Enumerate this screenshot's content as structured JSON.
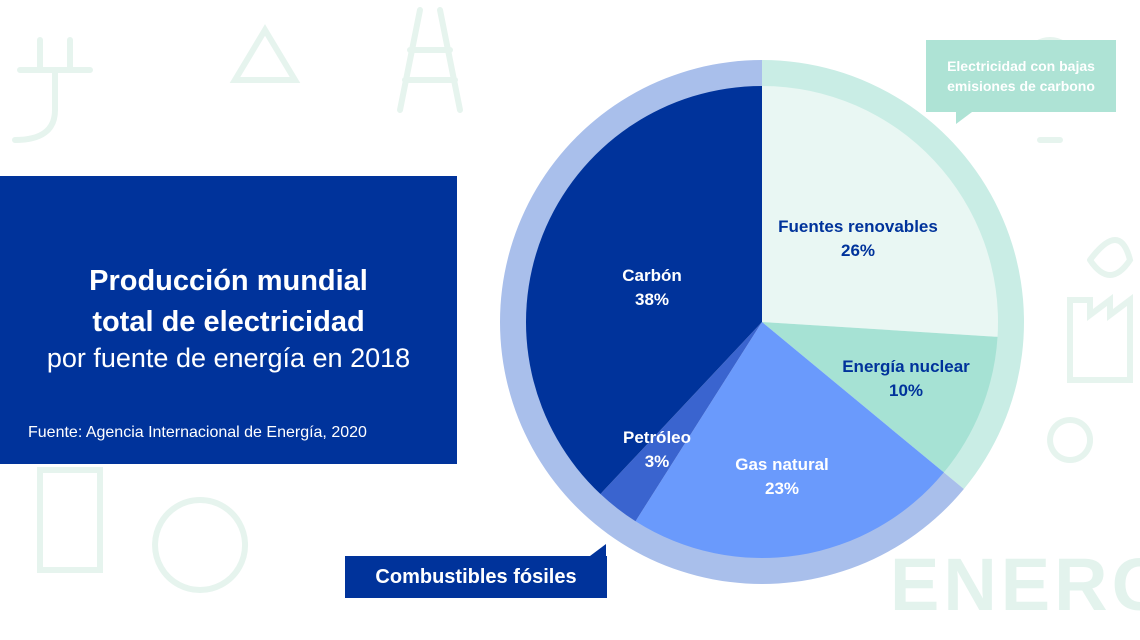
{
  "title": {
    "line1": "Producción mundial",
    "line2": "total de electricidad",
    "subtitle": "por fuente de energía en 2018",
    "source": "Fuente: Agencia Internacional de Energía, 2020"
  },
  "callouts": {
    "low_carbon_line1": "Electricidad con bajas",
    "low_carbon_line2": "emisiones de carbono",
    "fossil": "Combustibles fósiles"
  },
  "background_words": {
    "energy": "ENERGY"
  },
  "colors": {
    "title_bg": "#00339b",
    "coal": "#00339b",
    "oil": "#3a64cf",
    "gas": "#6a9afc",
    "nuclear": "#a6e2d4",
    "renewables": "#e9f7f3",
    "fossil_ring": "#a9bfeb",
    "lowcarbon_ring": "#c9ede5",
    "background_art": "#eaf6f1"
  },
  "chart_data": {
    "type": "pie",
    "title": "Producción mundial total de electricidad por fuente de energía en 2018",
    "slices": [
      {
        "label": "Fuentes renovables",
        "value": 26,
        "value_label": "26%",
        "group": "low_carbon"
      },
      {
        "label": "Energía nuclear",
        "value": 10,
        "value_label": "10%",
        "group": "low_carbon"
      },
      {
        "label": "Gas natural",
        "value": 23,
        "value_label": "23%",
        "group": "fossil"
      },
      {
        "label": "Petróleo",
        "value": 3,
        "value_label": "3%",
        "group": "fossil"
      },
      {
        "label": "Carbón",
        "value": 38,
        "value_label": "38%",
        "group": "fossil"
      }
    ],
    "groups": [
      {
        "name": "Electricidad con bajas emisiones de carbono",
        "slices": [
          "Fuentes renovables",
          "Energía nuclear"
        ]
      },
      {
        "name": "Combustibles fósiles",
        "slices": [
          "Gas natural",
          "Petróleo",
          "Carbón"
        ]
      }
    ]
  }
}
